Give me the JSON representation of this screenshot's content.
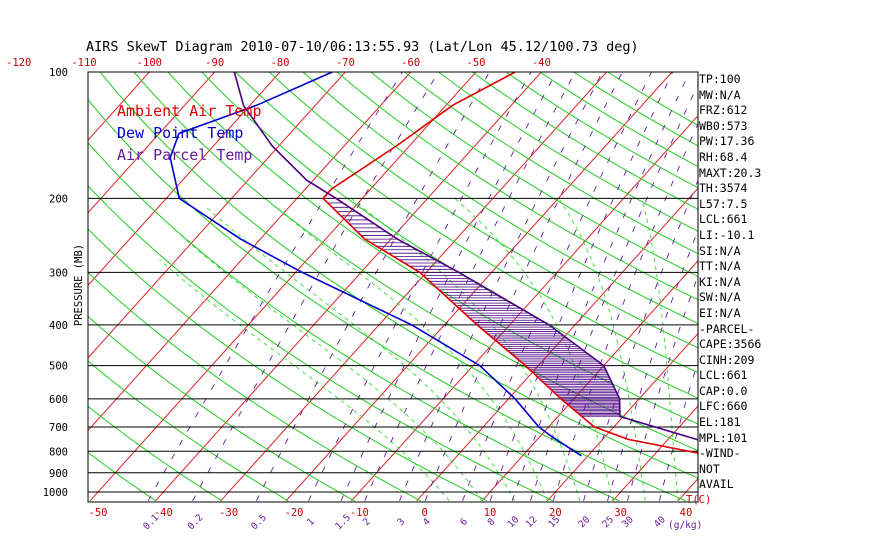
{
  "chart_data": {
    "type": "skewt",
    "title": "AIRS SkewT Diagram 2010-07-10/06:13:55.93 (Lat/Lon 45.12/100.73 deg)",
    "ylabel": "PRESSURE (MB)",
    "temp_unit_label": "T(C)",
    "mixing_unit_label": "(g/kg)",
    "ylim_mb": [
      1000,
      100
    ],
    "pressure_levels": [
      100,
      200,
      300,
      400,
      500,
      600,
      700,
      800,
      900,
      1000
    ],
    "bottom_temp_ticks": [
      -50,
      -40,
      -30,
      -20,
      -10,
      0,
      10,
      20,
      30,
      40
    ],
    "top_temp_ticks": [
      -120,
      -110,
      -100,
      -90,
      -80,
      -70,
      -60,
      -50,
      -40
    ],
    "mixing_ratio_labels": [
      "0.1",
      "0.2",
      "0.5",
      "1",
      "1.5",
      "2",
      "3",
      "4",
      "6",
      "8",
      "10",
      "12",
      "15",
      "20",
      "25",
      "30",
      "40"
    ],
    "legend": [
      {
        "name": "Ambient Air Temp",
        "color": "#e00000"
      },
      {
        "name": "Dew Point Temp",
        "color": "#0000cc"
      },
      {
        "name": "Air Parcel Temp",
        "color": "#6a1b9a"
      }
    ],
    "series": [
      {
        "name": "Ambient Air Temp",
        "points": [
          [
            820,
            39
          ],
          [
            750,
            24
          ],
          [
            700,
            17
          ],
          [
            600,
            8
          ],
          [
            500,
            -2
          ],
          [
            400,
            -15
          ],
          [
            300,
            -31
          ],
          [
            250,
            -44
          ],
          [
            200,
            -56
          ],
          [
            190,
            -56
          ],
          [
            150,
            -52
          ],
          [
            120,
            -49
          ],
          [
            100,
            -44
          ]
        ]
      },
      {
        "name": "Dew Point Temp",
        "points": [
          [
            820,
            19
          ],
          [
            740,
            12
          ],
          [
            700,
            8.5
          ],
          [
            600,
            1
          ],
          [
            500,
            -9
          ],
          [
            400,
            -25
          ],
          [
            300,
            -49
          ],
          [
            250,
            -63
          ],
          [
            200,
            -78
          ],
          [
            160,
            -85
          ],
          [
            140,
            -87
          ],
          [
            120,
            -79
          ],
          [
            100,
            -72
          ]
        ]
      },
      {
        "name": "Air Parcel Temp",
        "points": [
          [
            820,
            39
          ],
          [
            760,
            36
          ],
          [
            661,
            19.5
          ],
          [
            600,
            17
          ],
          [
            500,
            10
          ],
          [
            400,
            -4
          ],
          [
            300,
            -25
          ],
          [
            250,
            -39
          ],
          [
            200,
            -54
          ],
          [
            181,
            -61
          ],
          [
            150,
            -71
          ],
          [
            120,
            -81
          ],
          [
            100,
            -87
          ]
        ]
      }
    ],
    "cape_shading": {
      "from_mb": 660,
      "to_mb": 181,
      "color": "#4b0082"
    },
    "wind_note": "NOT AVAIL"
  },
  "side_panel": [
    "TP:100",
    "MW:N/A",
    "FRZ:612",
    "WB0:573",
    "PW:17.36",
    "RH:68.4",
    "MAXT:20.3",
    "TH:3574",
    "L57:7.5",
    "LCL:661",
    "LI:-10.1",
    "SI:N/A",
    "TT:N/A",
    "KI:N/A",
    "SW:N/A",
    "EI:N/A",
    "-PARCEL-",
    "CAPE:3566",
    "CINH:209",
    "LCL:661",
    "CAP:0.0",
    "LFC:660",
    "EL:181",
    "MPL:101",
    "-WIND-",
    "NOT",
    "AVAIL"
  ],
  "colors": {
    "temp_axis": "#cc0000",
    "isotherm": "#dd2222",
    "dry_adiabat": "#22cc22",
    "moist_adiabat": "#33dd33",
    "mixing_ratio": "#6a1b9a",
    "ambient": "#e00000",
    "dewpoint": "#0000cc",
    "parcel": "#4b0082",
    "cape": "#4b0082"
  }
}
